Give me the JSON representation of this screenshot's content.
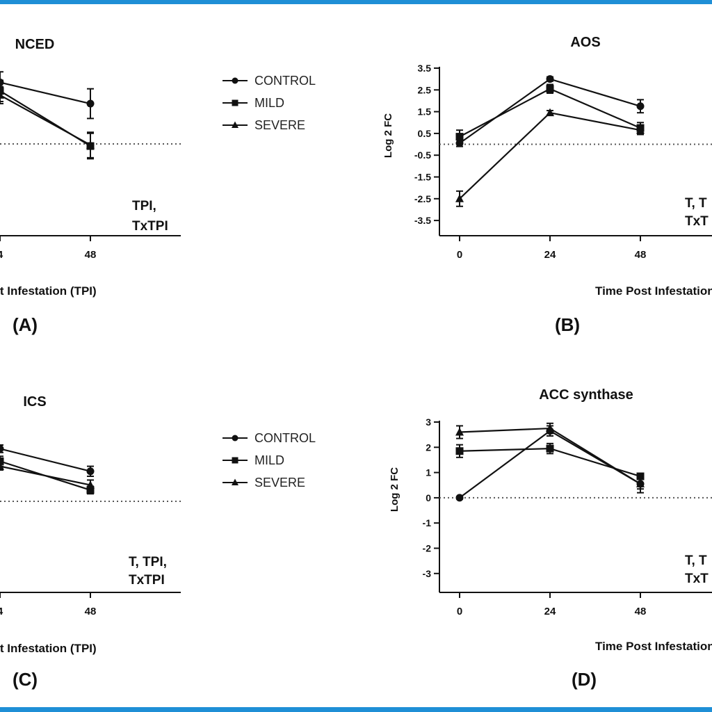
{
  "chart_data": [
    {
      "panel": "(A)",
      "type": "line",
      "title": "NCED",
      "xlabel": "ost Infestation (TPI)",
      "x_ticks": [
        "4",
        "48"
      ],
      "annotation": [
        "TPI,",
        "TxTPI"
      ],
      "x": [
        24,
        48
      ],
      "ylim": [
        -4,
        4
      ],
      "series": [
        {
          "name": "CONTROL",
          "marker": "circle",
          "values": [
            2.9,
            1.9
          ],
          "err": [
            0.5,
            0.7
          ]
        },
        {
          "name": "MILD",
          "marker": "square",
          "values": [
            2.5,
            -0.1
          ],
          "err": [
            0.5,
            0.6
          ]
        },
        {
          "name": "SEVERE",
          "marker": "triangle",
          "values": [
            2.3,
            -0.05
          ],
          "err": [
            0.4,
            0.6
          ]
        }
      ]
    },
    {
      "panel": "(B)",
      "type": "line",
      "title": "AOS",
      "xlabel": "Time Post Infestation (TPI)",
      "ylabel": "Log 2 FC",
      "y_ticks": [
        "3.5",
        "2.5",
        "1.5",
        "0.5",
        "-0.5",
        "-1.5",
        "-2.5",
        "-3.5"
      ],
      "x_ticks": [
        "0",
        "24",
        "48"
      ],
      "annotation": [
        "T, T",
        "TxT"
      ],
      "x": [
        0,
        24,
        48
      ],
      "ylim": [
        -3.5,
        3.5
      ],
      "series": [
        {
          "name": "CONTROL",
          "marker": "circle",
          "values": [
            0.05,
            3.0,
            1.75
          ],
          "err": [
            0.15,
            0.1,
            0.3
          ]
        },
        {
          "name": "MILD",
          "marker": "square",
          "values": [
            0.35,
            2.55,
            0.75
          ],
          "err": [
            0.3,
            0.2,
            0.25
          ]
        },
        {
          "name": "SEVERE",
          "marker": "triangle",
          "values": [
            -2.5,
            1.45,
            0.65
          ],
          "err": [
            0.35,
            0.1,
            0.2
          ]
        }
      ]
    },
    {
      "panel": "(C)",
      "type": "line",
      "title": "ICS",
      "xlabel": "ost Infestation (TPI)",
      "x_ticks": [
        "4",
        "48"
      ],
      "annotation": [
        "T, TPI,",
        "TxTPI"
      ],
      "x": [
        24,
        48
      ],
      "ylim": [
        -4,
        4
      ],
      "series": [
        {
          "name": "CONTROL",
          "marker": "circle",
          "values": [
            2.1,
            1.2
          ],
          "err": [
            0.15,
            0.2
          ]
        },
        {
          "name": "MILD",
          "marker": "square",
          "values": [
            1.6,
            0.45
          ],
          "err": [
            0.2,
            0.15
          ]
        },
        {
          "name": "SEVERE",
          "marker": "triangle",
          "values": [
            1.4,
            0.65
          ],
          "err": [
            0.15,
            0.2
          ]
        }
      ]
    },
    {
      "panel": "(D)",
      "type": "line",
      "title": "ACC synthase",
      "xlabel": "Time Post Infestation (TPI)",
      "ylabel": "Log 2 FC",
      "y_ticks": [
        "3",
        "2",
        "1",
        "0",
        "-1",
        "-2",
        "-3"
      ],
      "x_ticks": [
        "0",
        "24",
        "48"
      ],
      "annotation": [
        "T, T",
        "TxT"
      ],
      "x": [
        0,
        24,
        48
      ],
      "ylim": [
        -3,
        3
      ],
      "series": [
        {
          "name": "CONTROL",
          "marker": "circle",
          "values": [
            0.0,
            2.65,
            0.55
          ],
          "err": [
            0.05,
            0.2,
            0.2
          ]
        },
        {
          "name": "MILD",
          "marker": "square",
          "values": [
            1.85,
            1.95,
            0.85
          ],
          "err": [
            0.25,
            0.2,
            0.1
          ]
        },
        {
          "name": "SEVERE",
          "marker": "triangle",
          "values": [
            2.6,
            2.75,
            0.55
          ],
          "err": [
            0.25,
            0.2,
            0.35
          ]
        }
      ]
    }
  ],
  "legend": {
    "items": [
      "CONTROL",
      "MILD",
      "SEVERE"
    ]
  },
  "colors": {
    "frame": "#1f8fd6",
    "ink": "#111111",
    "zero_line": "#555555"
  }
}
